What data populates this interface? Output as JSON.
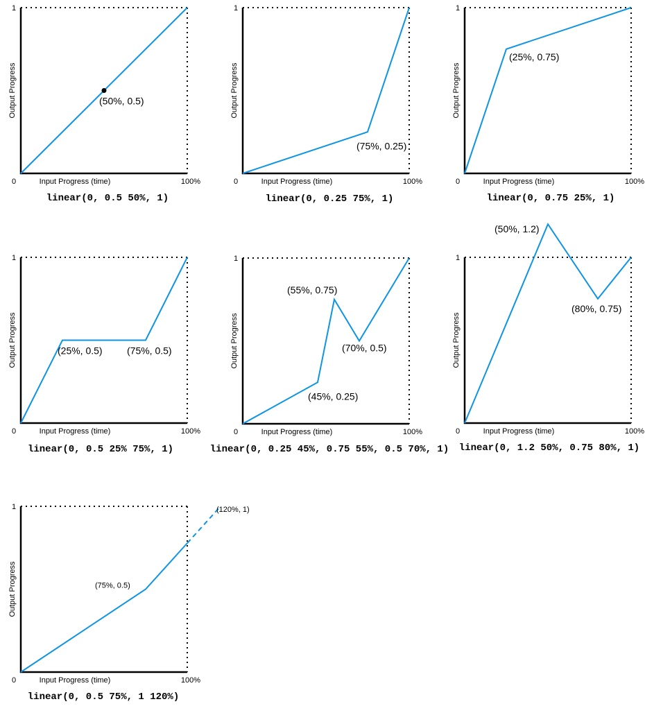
{
  "chart_data": [
    {
      "type": "line",
      "title": "linear(0, 0.5 50%, 1)",
      "xlabel": "Input Progress (time)",
      "ylabel": "Output Progress",
      "x_ticks": [
        "0",
        "100%"
      ],
      "y_ticks": [
        "1"
      ],
      "xlim": [
        0,
        100
      ],
      "ylim": [
        0,
        1
      ],
      "color": "#0e94e4",
      "points": [
        [
          0,
          0
        ],
        [
          50,
          0.5
        ],
        [
          100,
          1
        ]
      ],
      "marker_points": [
        [
          50,
          0.5
        ]
      ],
      "annotations": [
        {
          "x": 50,
          "y": 0.5,
          "text": "(50%, 0.5)"
        }
      ]
    },
    {
      "type": "line",
      "title": "linear(0, 0.25 75%, 1)",
      "xlabel": "Input Progress (time)",
      "ylabel": "Output Progress",
      "x_ticks": [
        "0",
        "100%"
      ],
      "y_ticks": [
        "1"
      ],
      "xlim": [
        0,
        100
      ],
      "ylim": [
        0,
        1
      ],
      "color": "#0e94e4",
      "points": [
        [
          0,
          0
        ],
        [
          75,
          0.25
        ],
        [
          100,
          1
        ]
      ],
      "annotations": [
        {
          "x": 75,
          "y": 0.25,
          "text": "(75%, 0.25)"
        }
      ]
    },
    {
      "type": "line",
      "title": "linear(0, 0.75 25%, 1)",
      "xlabel": "Input Progress (time)",
      "ylabel": "Output Progress",
      "x_ticks": [
        "0",
        "100%"
      ],
      "y_ticks": [
        "1"
      ],
      "xlim": [
        0,
        100
      ],
      "ylim": [
        0,
        1
      ],
      "color": "#0e94e4",
      "points": [
        [
          0,
          0
        ],
        [
          25,
          0.75
        ],
        [
          100,
          1
        ]
      ],
      "annotations": [
        {
          "x": 25,
          "y": 0.75,
          "text": "(25%, 0.75)"
        }
      ]
    },
    {
      "type": "line",
      "title": "linear(0, 0.5 25% 75%, 1)",
      "xlabel": "Input Progress (time)",
      "ylabel": "Output Progress",
      "x_ticks": [
        "0",
        "100%"
      ],
      "y_ticks": [
        "1"
      ],
      "xlim": [
        0,
        100
      ],
      "ylim": [
        0,
        1
      ],
      "color": "#0e94e4",
      "points": [
        [
          0,
          0
        ],
        [
          25,
          0.5
        ],
        [
          75,
          0.5
        ],
        [
          100,
          1
        ]
      ],
      "annotations": [
        {
          "x": 25,
          "y": 0.5,
          "text": "(25%, 0.5)"
        },
        {
          "x": 75,
          "y": 0.5,
          "text": "(75%, 0.5)"
        }
      ]
    },
    {
      "type": "line",
      "title": "linear(0, 0.25 45%, 0.75 55%, 0.5 70%, 1)",
      "xlabel": "Input Progress (time)",
      "ylabel": "Output Progress",
      "x_ticks": [
        "0",
        "100%"
      ],
      "y_ticks": [
        "1"
      ],
      "xlim": [
        0,
        100
      ],
      "ylim": [
        0,
        1
      ],
      "color": "#0e94e4",
      "points": [
        [
          0,
          0
        ],
        [
          45,
          0.25
        ],
        [
          55,
          0.75
        ],
        [
          70,
          0.5
        ],
        [
          100,
          1
        ]
      ],
      "annotations": [
        {
          "x": 45,
          "y": 0.25,
          "text": "(45%, 0.25)"
        },
        {
          "x": 55,
          "y": 0.75,
          "text": "(55%, 0.75)"
        },
        {
          "x": 70,
          "y": 0.5,
          "text": "(70%, 0.5)"
        }
      ]
    },
    {
      "type": "line",
      "title": "linear(0, 1.2 50%, 0.75 80%, 1)",
      "xlabel": "Input Progress (time)",
      "ylabel": "Output Progress",
      "x_ticks": [
        "0",
        "100%"
      ],
      "y_ticks": [
        "1"
      ],
      "xlim": [
        0,
        100
      ],
      "ylim": [
        0,
        1
      ],
      "color": "#0e94e4",
      "points": [
        [
          0,
          0
        ],
        [
          50,
          1.2
        ],
        [
          80,
          0.75
        ],
        [
          100,
          1
        ]
      ],
      "annotations": [
        {
          "x": 50,
          "y": 1.2,
          "text": "(50%, 1.2)"
        },
        {
          "x": 80,
          "y": 0.75,
          "text": "(80%, 0.75)"
        }
      ]
    },
    {
      "type": "line",
      "title": "linear(0, 0.5 75%, 1 120%)",
      "xlabel": "Input Progress (time)",
      "ylabel": "Output Progress",
      "x_ticks": [
        "0",
        "100%"
      ],
      "y_ticks": [
        "1"
      ],
      "xlim": [
        0,
        100
      ],
      "ylim": [
        0,
        1
      ],
      "color": "#0e94e4",
      "points": [
        [
          0,
          0
        ],
        [
          75,
          0.5
        ],
        [
          120,
          1
        ]
      ],
      "dashed_beyond_x": 100,
      "annotations": [
        {
          "x": 75,
          "y": 0.5,
          "text": "(75%, 0.5)"
        },
        {
          "x": 120,
          "y": 1,
          "text": "(120%, 1)"
        }
      ]
    }
  ]
}
